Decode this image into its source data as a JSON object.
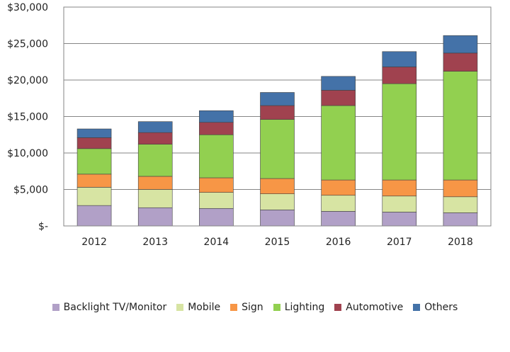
{
  "chart_data": {
    "type": "bar",
    "stacked": true,
    "title": "",
    "xlabel": "",
    "ylabel": "",
    "categories": [
      "2012",
      "2013",
      "2014",
      "2015",
      "2016",
      "2017",
      "2018"
    ],
    "ylim": [
      0,
      30000
    ],
    "yticks": [
      {
        "value": 0,
        "label": "$-"
      },
      {
        "value": 5000,
        "label": "$5,000"
      },
      {
        "value": 10000,
        "label": "$10,000"
      },
      {
        "value": 15000,
        "label": "$15,000"
      },
      {
        "value": 20000,
        "label": "$20,000"
      },
      {
        "value": 25000,
        "label": "$25,000"
      },
      {
        "value": 30000,
        "label": "$30,000"
      }
    ],
    "grid": true,
    "legend_position": "bottom",
    "series": [
      {
        "name": "Backlight TV/Monitor",
        "color": "#b1a0c7",
        "values": [
          2800,
          2500,
          2400,
          2200,
          2000,
          1900,
          1800
        ]
      },
      {
        "name": "Mobile",
        "color": "#d7e4a3",
        "values": [
          2500,
          2500,
          2200,
          2200,
          2200,
          2200,
          2200
        ]
      },
      {
        "name": "Sign",
        "color": "#f79646",
        "values": [
          1800,
          1800,
          2000,
          2100,
          2100,
          2200,
          2300
        ]
      },
      {
        "name": "Lighting",
        "color": "#92d050",
        "values": [
          3500,
          4400,
          5900,
          8100,
          10200,
          13200,
          14900
        ]
      },
      {
        "name": "Automotive",
        "color": "#a0424f",
        "values": [
          1500,
          1600,
          1700,
          1900,
          2100,
          2300,
          2500
        ]
      },
      {
        "name": "Others",
        "color": "#4472a8",
        "values": [
          1200,
          1500,
          1600,
          1800,
          1900,
          2100,
          2400
        ]
      }
    ]
  }
}
